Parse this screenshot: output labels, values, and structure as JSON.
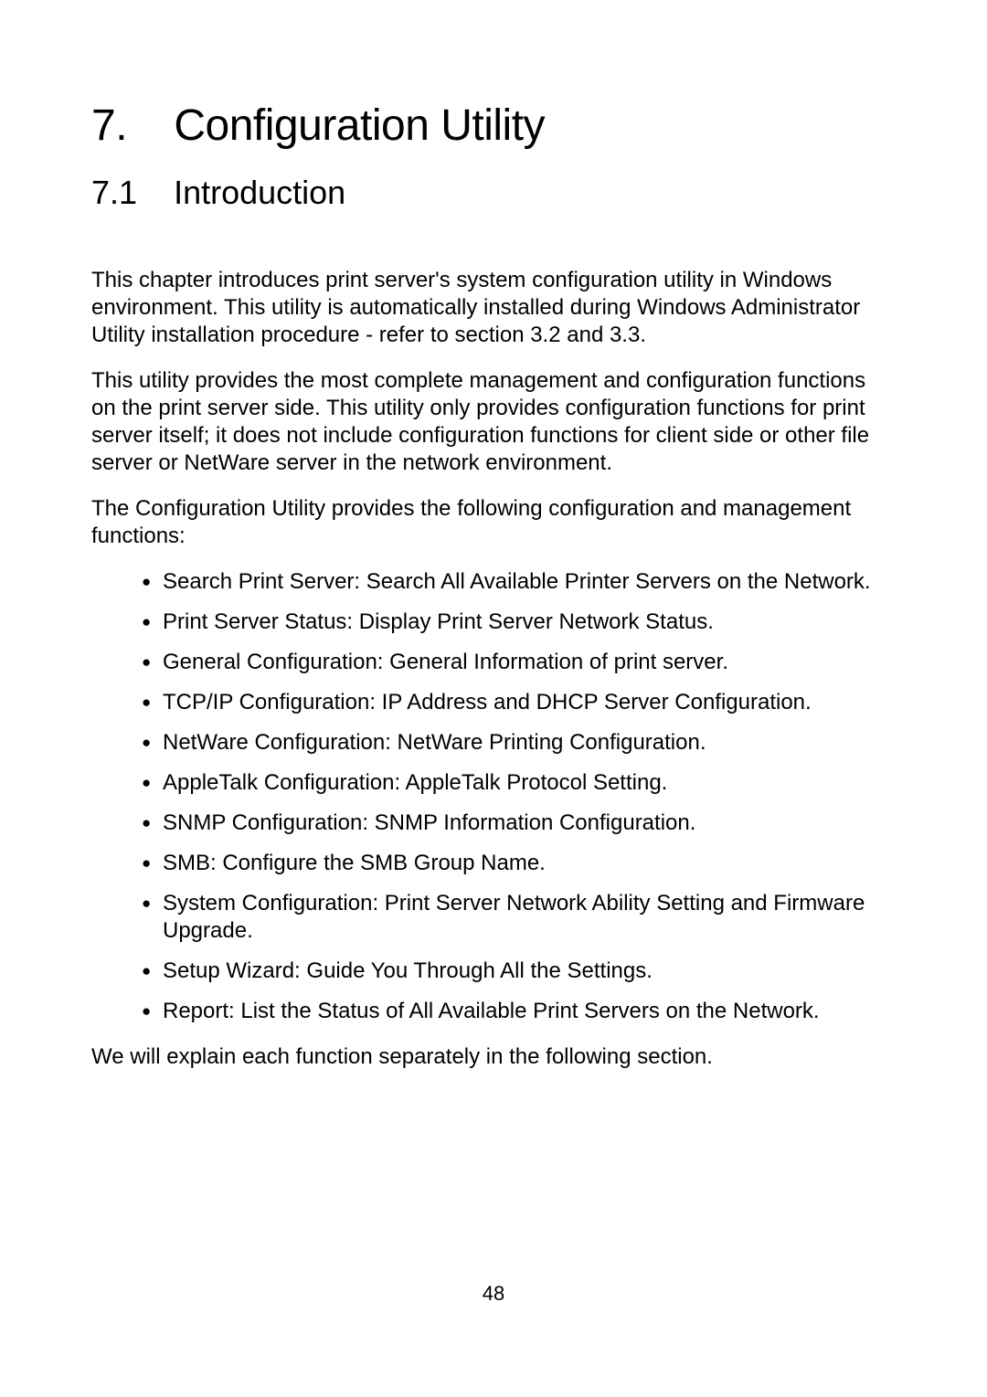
{
  "chapter": {
    "number": "7.",
    "title": "Configuration Utility"
  },
  "section": {
    "number": "7.1",
    "title": "Introduction"
  },
  "paragraphs": {
    "p1": "This chapter introduces print server's system configuration utility in Windows environment. This utility is automatically installed during Windows Administrator Utility installation procedure - refer to section 3.2 and 3.3.",
    "p2": "This utility provides the most complete management and configuration functions on the print server side. This utility only provides configuration functions for print server itself; it does not include configuration functions for client side or other file server or NetWare server in the network environment.",
    "p3": "The Configuration Utility provides the following configuration and management functions:",
    "p4": "We will explain each function separately in the following section."
  },
  "bullets": [
    "Search Print Server: Search All Available Printer Servers on the Network.",
    "Print Server Status: Display Print Server Network Status.",
    "General Configuration: General Information of print server.",
    "TCP/IP Configuration: IP Address and DHCP Server Configuration.",
    "NetWare Configuration: NetWare Printing Configuration.",
    "AppleTalk Configuration: AppleTalk Protocol Setting.",
    "SNMP Configuration: SNMP Information Configuration.",
    "SMB: Configure the SMB Group Name.",
    "System Configuration: Print Server Network Ability Setting and Firmware Upgrade.",
    "Setup Wizard: Guide You Through All the Settings.",
    "Report: List the Status of All Available Print Servers on the Network."
  ],
  "page_number": "48",
  "styling": {
    "background_color": "#ffffff",
    "text_color": "#000000",
    "chapter_fontsize": 48,
    "section_fontsize": 36,
    "body_fontsize": 24,
    "bullet_marker": "●",
    "font_family": "Arial"
  }
}
